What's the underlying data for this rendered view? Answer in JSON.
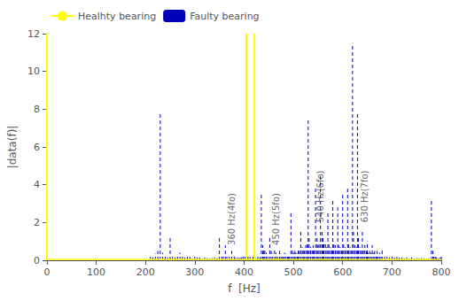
{
  "chart_data": {
    "type": "stem",
    "xlabel": "f  [Hz]",
    "ylabel": "|data(f)|",
    "xlim": [
      0,
      800
    ],
    "ylim": [
      0,
      12
    ],
    "xticks": [
      0,
      100,
      200,
      300,
      400,
      500,
      600,
      700,
      800
    ],
    "yticks": [
      0,
      2,
      4,
      6,
      8,
      10,
      12
    ],
    "grid": false,
    "legend": "upper left",
    "series": [
      {
        "name": "Healhty bearing",
        "type": "line",
        "color": "#FFFF00",
        "line_style": "solid",
        "x": [
          0,
          800
        ],
        "values": [
          0.05,
          0.05
        ]
      },
      {
        "name": "Faulty bearing",
        "type": "stem",
        "color": "#0000BB",
        "line_style": "dashed",
        "x": [
          210,
          215,
          220,
          225,
          230,
          235,
          240,
          245,
          250,
          255,
          260,
          265,
          270,
          275,
          280,
          285,
          290,
          295,
          300,
          305,
          310,
          315,
          320,
          325,
          330,
          335,
          340,
          345,
          350,
          355,
          358,
          362,
          365,
          370,
          375,
          380,
          383,
          388,
          392,
          395,
          398,
          402,
          408,
          412,
          418,
          422,
          428,
          432,
          435,
          438,
          440,
          442,
          445,
          448,
          452,
          455,
          458,
          462,
          465,
          468,
          472,
          475,
          478,
          480,
          482,
          485,
          488,
          490,
          492,
          495,
          498,
          500,
          503,
          505,
          508,
          510,
          512,
          515,
          518,
          520,
          522,
          525,
          528,
          530,
          532,
          535,
          538,
          540,
          542,
          545,
          548,
          550,
          552,
          555,
          558,
          560,
          562,
          565,
          568,
          570,
          572,
          575,
          578,
          580,
          582,
          585,
          588,
          590,
          592,
          595,
          598,
          600,
          602,
          605,
          608,
          610,
          612,
          615,
          618,
          620,
          622,
          625,
          628,
          630,
          632,
          635,
          638,
          640,
          642,
          645,
          648,
          650,
          652,
          655,
          658,
          660,
          663,
          665,
          668,
          670,
          672,
          675,
          678,
          680,
          685,
          690,
          695,
          700,
          705,
          710,
          715,
          720,
          725,
          730,
          735,
          740,
          745,
          750,
          755,
          760,
          765,
          770,
          775,
          780,
          783,
          785,
          788,
          790,
          793,
          795,
          798,
          800
        ],
        "values": [
          0.25,
          0.15,
          0.35,
          0.5,
          7.8,
          0.4,
          0.2,
          0.15,
          1.2,
          0.2,
          0.15,
          0.2,
          0.4,
          0.2,
          0.15,
          0.2,
          0.25,
          0.1,
          0.2,
          0.15,
          0.15,
          0.1,
          0.15,
          0.12,
          0.1,
          0.12,
          0.15,
          0.12,
          1.3,
          0.3,
          0.2,
          0.8,
          0.3,
          0.2,
          0.5,
          0.25,
          0.15,
          0.15,
          0.15,
          0.15,
          0.2,
          0.2,
          0.2,
          0.3,
          0.25,
          0.2,
          0.2,
          0.15,
          3.5,
          0.8,
          0.5,
          0.6,
          0.4,
          0.3,
          1.2,
          0.5,
          0.35,
          0.6,
          0.4,
          0.3,
          0.5,
          0.35,
          0.25,
          0.3,
          0.4,
          0.35,
          0.25,
          0.3,
          0.25,
          2.5,
          0.6,
          0.4,
          0.5,
          0.4,
          0.35,
          0.6,
          0.5,
          1.5,
          0.7,
          0.5,
          0.6,
          0.8,
          0.9,
          7.5,
          1.2,
          0.7,
          0.6,
          0.8,
          0.6,
          3.8,
          1.2,
          0.8,
          1.0,
          4.5,
          1.5,
          1.2,
          0.9,
          1.0,
          0.7,
          2.5,
          0.9,
          0.7,
          0.6,
          3.2,
          1.0,
          0.8,
          0.6,
          2.8,
          0.8,
          0.7,
          0.6,
          3.5,
          0.9,
          0.7,
          0.6,
          3.8,
          0.9,
          0.7,
          0.6,
          11.5,
          1.5,
          0.8,
          0.7,
          7.8,
          1.2,
          0.7,
          0.5,
          1.5,
          0.6,
          0.8,
          0.5,
          1.0,
          0.4,
          0.5,
          0.4,
          0.8,
          0.4,
          0.5,
          0.3,
          0.5,
          0.3,
          0.4,
          0.3,
          0.6,
          0.3,
          0.2,
          0.15,
          0.2,
          0.15,
          0.2,
          0.15,
          0.15,
          0.1,
          0.15,
          0.1,
          0.15,
          0.1,
          0.12,
          0.1,
          0.12,
          0.1,
          0.1,
          0.1,
          3.2,
          0.5,
          0.3,
          0.2,
          0.15,
          0.12,
          0.1,
          0.15,
          0.3
        ]
      }
    ],
    "vlines": {
      "x": [
        405,
        420,
        0
      ],
      "color": "#FFFF00"
    },
    "annotations": [
      {
        "text": "360 Hz(4fo)",
        "x": 362,
        "y": 0.8,
        "color": "#404040"
      },
      {
        "text": "450 Hz(5fo)",
        "x": 452,
        "y": 0.8,
        "color": "#404040"
      },
      {
        "text": "540 Hz(6fo)",
        "x": 542,
        "y": 2.0,
        "color": "#404040"
      },
      {
        "text": "630 Hz(7fo)",
        "x": 632,
        "y": 2.0,
        "color": "#404040"
      }
    ]
  }
}
